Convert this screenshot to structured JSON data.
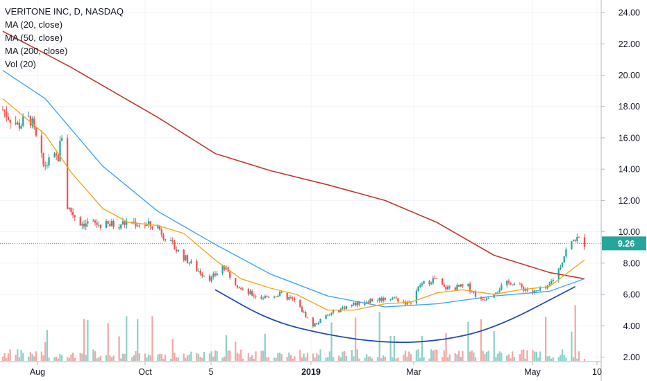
{
  "header": {
    "title": "VERITONE INC, D, NASDAQ",
    "indicators": [
      "MA (20, close)",
      "MA (50, close)",
      "MA (200, close)",
      "Vol (20)"
    ]
  },
  "colors": {
    "up": "#26a69a",
    "down": "#ef5350",
    "up_volume": "#8fd1c9",
    "down_volume": "#f4a8a6",
    "ma20": "#f5a623",
    "ma50": "#42a5f5",
    "ma200": "#c0392b",
    "trend_arc": "#1f4bb5",
    "price_line": "#26a69a",
    "price_badge": "#26a69a",
    "grid": "#f0f3fa",
    "axis_text": "#131722"
  },
  "chart_data": {
    "type": "candlestick",
    "yaxis": {
      "ticks": [
        "2.00",
        "4.00",
        "6.00",
        "8.00",
        "10.00",
        "12.00",
        "14.00",
        "16.00",
        "18.00",
        "20.00",
        "22.00",
        "24.00"
      ],
      "ylim": [
        1.8,
        24.8
      ],
      "position": "right"
    },
    "xaxis": {
      "ticks": [
        "Aug",
        "Oct",
        "5",
        "2019",
        "Mar",
        "May",
        "10"
      ],
      "bold_tick": "2019",
      "range": [
        "2018-07-09",
        "2019-05-20"
      ]
    },
    "last_price": "9.26",
    "price_anchors": [
      {
        "date": "2018-07-09",
        "price": 17.8
      },
      {
        "date": "2018-07-17",
        "price": 16.8
      },
      {
        "date": "2018-07-24",
        "price": 17.2
      },
      {
        "date": "2018-07-31",
        "price": 14.2
      },
      {
        "date": "2018-08-08",
        "price": 14.8
      },
      {
        "date": "2018-08-10",
        "price": 16.2
      },
      {
        "date": "2018-08-13",
        "price": 11.6
      },
      {
        "date": "2018-08-20",
        "price": 10.6
      },
      {
        "date": "2018-09-03",
        "price": 10.4
      },
      {
        "date": "2018-09-17",
        "price": 10.6
      },
      {
        "date": "2018-10-01",
        "price": 10.3
      },
      {
        "date": "2018-10-08",
        "price": 9.2
      },
      {
        "date": "2018-10-22",
        "price": 7.6
      },
      {
        "date": "2018-10-30",
        "price": 7.0
      },
      {
        "date": "2018-11-05",
        "price": 7.8
      },
      {
        "date": "2018-11-16",
        "price": 6.2
      },
      {
        "date": "2018-11-26",
        "price": 5.8
      },
      {
        "date": "2018-12-06",
        "price": 6.0
      },
      {
        "date": "2018-12-14",
        "price": 5.6
      },
      {
        "date": "2018-12-24",
        "price": 4.0
      },
      {
        "date": "2018-12-31",
        "price": 4.6
      },
      {
        "date": "2019-01-10",
        "price": 5.2
      },
      {
        "date": "2019-01-22",
        "price": 5.6
      },
      {
        "date": "2019-02-05",
        "price": 5.8
      },
      {
        "date": "2019-02-14",
        "price": 5.4
      },
      {
        "date": "2019-02-20",
        "price": 6.6
      },
      {
        "date": "2019-02-28",
        "price": 7.0
      },
      {
        "date": "2019-03-05",
        "price": 6.4
      },
      {
        "date": "2019-03-18",
        "price": 6.5
      },
      {
        "date": "2019-03-25",
        "price": 5.6
      },
      {
        "date": "2019-04-01",
        "price": 6.2
      },
      {
        "date": "2019-04-10",
        "price": 6.8
      },
      {
        "date": "2019-04-22",
        "price": 6.1
      },
      {
        "date": "2019-04-30",
        "price": 6.4
      },
      {
        "date": "2019-05-06",
        "price": 7.6
      },
      {
        "date": "2019-05-10",
        "price": 8.8
      },
      {
        "date": "2019-05-15",
        "price": 9.6
      },
      {
        "date": "2019-05-20",
        "price": 9.26
      }
    ],
    "ma20": [
      {
        "date": "2018-07-09",
        "value": 18.5
      },
      {
        "date": "2018-08-01",
        "value": 16.2
      },
      {
        "date": "2018-08-15",
        "value": 13.8
      },
      {
        "date": "2018-09-01",
        "value": 11.5
      },
      {
        "date": "2018-09-15",
        "value": 10.6
      },
      {
        "date": "2018-10-01",
        "value": 10.4
      },
      {
        "date": "2018-10-15",
        "value": 9.9
      },
      {
        "date": "2018-11-01",
        "value": 8.2
      },
      {
        "date": "2018-11-15",
        "value": 7.0
      },
      {
        "date": "2018-12-01",
        "value": 6.4
      },
      {
        "date": "2018-12-15",
        "value": 6.0
      },
      {
        "date": "2019-01-01",
        "value": 5.0
      },
      {
        "date": "2019-01-15",
        "value": 5.0
      },
      {
        "date": "2019-02-01",
        "value": 5.4
      },
      {
        "date": "2019-02-15",
        "value": 5.5
      },
      {
        "date": "2019-03-01",
        "value": 6.1
      },
      {
        "date": "2019-03-15",
        "value": 6.3
      },
      {
        "date": "2019-04-01",
        "value": 6.0
      },
      {
        "date": "2019-04-15",
        "value": 6.3
      },
      {
        "date": "2019-05-01",
        "value": 6.5
      },
      {
        "date": "2019-05-20",
        "value": 8.2
      }
    ],
    "ma50": [
      {
        "date": "2018-07-09",
        "value": 20.3
      },
      {
        "date": "2018-08-01",
        "value": 18.5
      },
      {
        "date": "2018-09-01",
        "value": 14.2
      },
      {
        "date": "2018-10-01",
        "value": 11.3
      },
      {
        "date": "2018-11-01",
        "value": 9.2
      },
      {
        "date": "2018-12-01",
        "value": 7.3
      },
      {
        "date": "2019-01-01",
        "value": 5.9
      },
      {
        "date": "2019-02-01",
        "value": 5.2
      },
      {
        "date": "2019-03-01",
        "value": 5.4
      },
      {
        "date": "2019-04-01",
        "value": 5.9
      },
      {
        "date": "2019-05-01",
        "value": 6.2
      },
      {
        "date": "2019-05-20",
        "value": 7.0
      }
    ],
    "ma200": [
      {
        "date": "2018-07-09",
        "value": 22.8
      },
      {
        "date": "2018-08-15",
        "value": 20.5
      },
      {
        "date": "2018-10-01",
        "value": 17.3
      },
      {
        "date": "2018-11-01",
        "value": 15.0
      },
      {
        "date": "2018-12-01",
        "value": 13.9
      },
      {
        "date": "2019-01-01",
        "value": 13.0
      },
      {
        "date": "2019-02-01",
        "value": 12.0
      },
      {
        "date": "2019-03-01",
        "value": 10.6
      },
      {
        "date": "2019-04-01",
        "value": 8.5
      },
      {
        "date": "2019-05-01",
        "value": 7.4
      },
      {
        "date": "2019-05-20",
        "value": 7.0
      }
    ],
    "trend_arc": [
      {
        "date": "2018-11-01",
        "value": 6.3
      },
      {
        "date": "2018-12-01",
        "value": 4.3
      },
      {
        "date": "2019-01-01",
        "value": 3.4
      },
      {
        "date": "2019-02-01",
        "value": 2.9
      },
      {
        "date": "2019-03-01",
        "value": 3.0
      },
      {
        "date": "2019-04-01",
        "value": 3.8
      },
      {
        "date": "2019-05-15",
        "value": 6.5
      }
    ]
  }
}
